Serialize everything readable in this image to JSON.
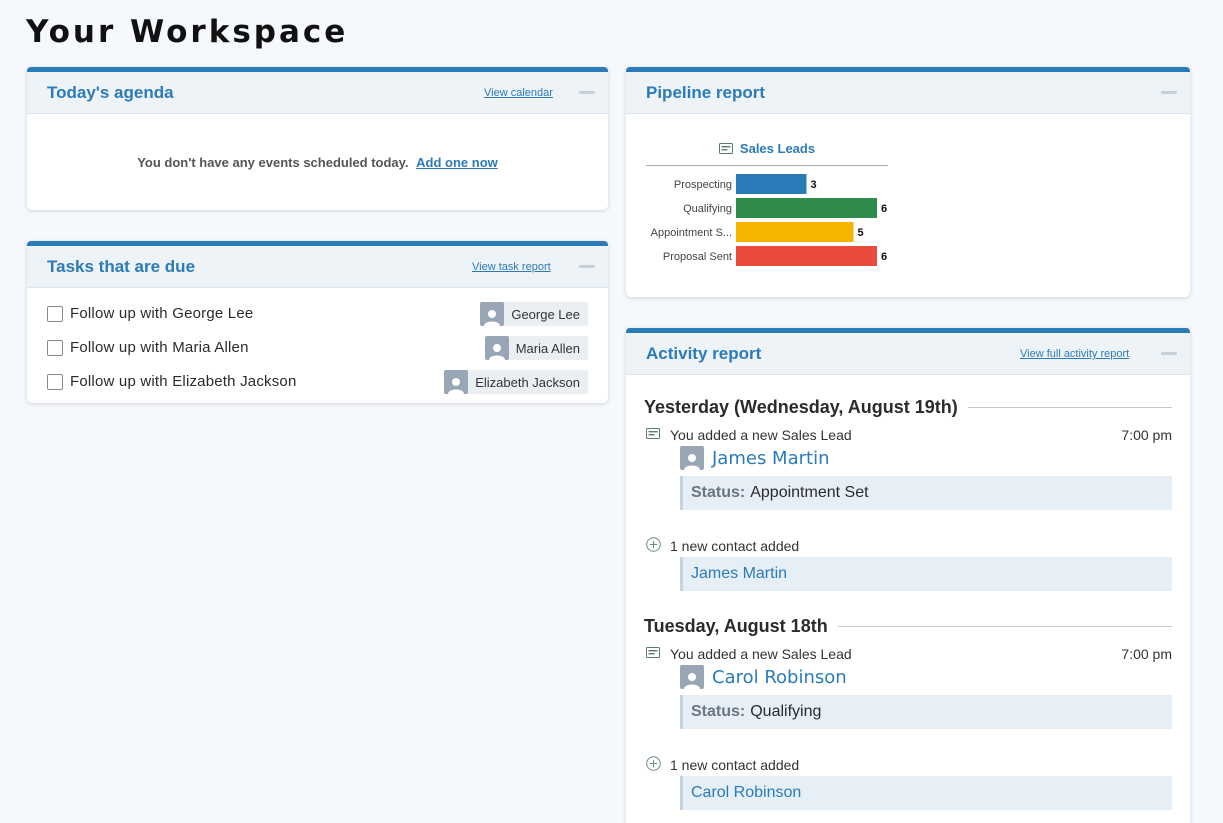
{
  "page": {
    "title": "Your Workspace"
  },
  "agenda": {
    "title": "Today's agenda",
    "link": "View calendar",
    "empty_text": "You don't have any events scheduled today.",
    "add_link": "Add one now"
  },
  "tasks": {
    "title": "Tasks that are due",
    "link": "View task report",
    "items": [
      {
        "label": "Follow up with George Lee",
        "assignee": "George Lee"
      },
      {
        "label": "Follow up with Maria Allen",
        "assignee": "Maria Allen"
      },
      {
        "label": "Follow up with Elizabeth Jackson",
        "assignee": "Elizabeth Jackson"
      }
    ]
  },
  "pipeline": {
    "title": "Pipeline report",
    "chart_title": "Sales Leads",
    "colors": {
      "Prospecting": "#2b7bb9",
      "Qualifying": "#2e8b4c",
      "Appointment S...": "#f5b400",
      "Proposal Sent": "#e94c3d"
    }
  },
  "chart_data": {
    "type": "bar",
    "orientation": "horizontal",
    "title": "Sales Leads",
    "categories": [
      "Prospecting",
      "Qualifying",
      "Appointment S...",
      "Proposal Sent"
    ],
    "values": [
      3,
      6,
      5,
      6
    ],
    "xlabel": "",
    "ylabel": "",
    "grid": false
  },
  "activity": {
    "title": "Activity report",
    "link": "View full activity report",
    "days": [
      {
        "heading": "Yesterday (Wednesday, August 19th)",
        "lead_event": "You added a new Sales Lead",
        "time": "7:00 pm",
        "lead_name": "James Martin",
        "status_key": "Status:",
        "status_value": "Appointment Set",
        "contact_event": "1 new contact added",
        "contact_name": "James Martin"
      },
      {
        "heading": "Tuesday, August 18th",
        "lead_event": "You added a new Sales Lead",
        "time": "7:00 pm",
        "lead_name": "Carol Robinson",
        "status_key": "Status:",
        "status_value": "Qualifying",
        "contact_event": "1 new contact added",
        "contact_name": "Carol Robinson"
      }
    ]
  }
}
